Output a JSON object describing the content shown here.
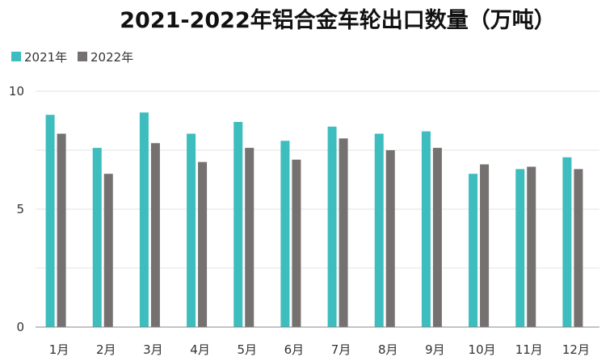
{
  "chart_data": {
    "type": "bar",
    "title": "2021-2022年铝合金车轮出口数量（万吨）",
    "xlabel": "",
    "ylabel": "",
    "categories": [
      "1月",
      "2月",
      "3月",
      "4月",
      "5月",
      "6月",
      "7月",
      "8月",
      "9月",
      "10月",
      "11月",
      "12月"
    ],
    "series": [
      {
        "name": "2021年",
        "color": "#3dbdbd",
        "values": [
          9.0,
          7.6,
          9.1,
          8.2,
          8.7,
          7.9,
          8.5,
          8.2,
          8.3,
          6.5,
          6.7,
          7.2
        ]
      },
      {
        "name": "2022年",
        "color": "#767171",
        "values": [
          8.2,
          6.5,
          7.8,
          7.0,
          7.6,
          7.1,
          8.0,
          7.5,
          7.6,
          6.9,
          6.8,
          6.7
        ]
      }
    ],
    "ylim": [
      0,
      10
    ],
    "yticks": [
      "0",
      "5",
      "10"
    ],
    "grid": true,
    "legend_position": "top-left"
  }
}
